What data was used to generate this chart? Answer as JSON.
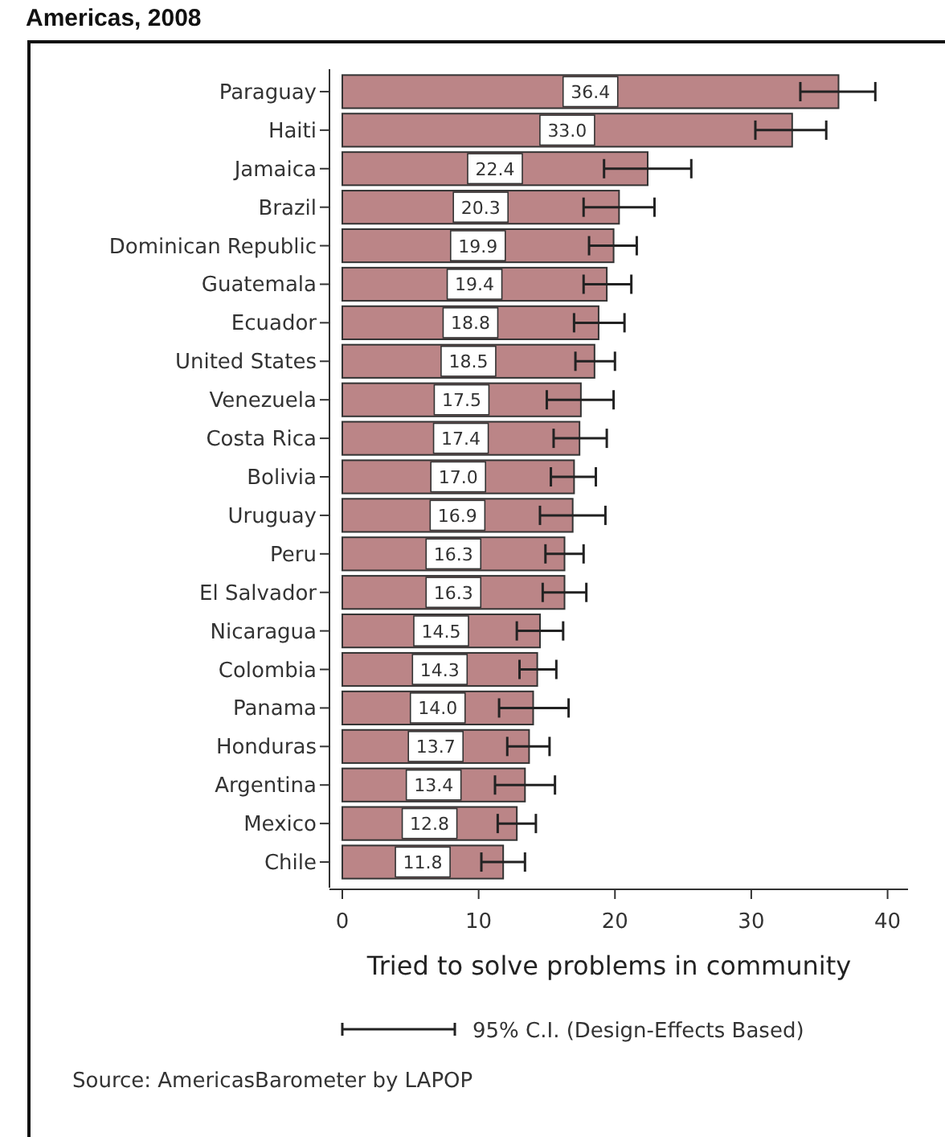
{
  "chart_data": {
    "type": "bar",
    "orientation": "horizontal",
    "title": "Americas, 2008",
    "xlabel": "Tried to solve problems in community",
    "categories": [
      "Paraguay",
      "Haiti",
      "Jamaica",
      "Brazil",
      "Dominican Republic",
      "Guatemala",
      "Ecuador",
      "United States",
      "Venezuela",
      "Costa Rica",
      "Bolivia",
      "Uruguay",
      "Peru",
      "El Salvador",
      "Nicaragua",
      "Colombia",
      "Panama",
      "Honduras",
      "Argentina",
      "Mexico",
      "Chile"
    ],
    "values": [
      36.4,
      33.0,
      22.4,
      20.3,
      19.9,
      19.4,
      18.8,
      18.5,
      17.5,
      17.4,
      17.0,
      16.9,
      16.3,
      16.3,
      14.5,
      14.3,
      14.0,
      13.7,
      13.4,
      12.8,
      11.8
    ],
    "value_labels": [
      "36.4",
      "33.0",
      "22.4",
      "20.3",
      "19.9",
      "19.4",
      "18.8",
      "18.5",
      "17.5",
      "17.4",
      "17.0",
      "16.9",
      "16.3",
      "16.3",
      "14.5",
      "14.3",
      "14.0",
      "13.7",
      "13.4",
      "12.8",
      "11.8"
    ],
    "errors": [
      [
        33.6,
        39.1
      ],
      [
        30.3,
        35.5
      ],
      [
        19.2,
        25.6
      ],
      [
        17.7,
        22.9
      ],
      [
        18.1,
        21.6
      ],
      [
        17.7,
        21.2
      ],
      [
        17.0,
        20.7
      ],
      [
        17.1,
        20.0
      ],
      [
        15.0,
        19.9
      ],
      [
        15.5,
        19.4
      ],
      [
        15.3,
        18.6
      ],
      [
        14.5,
        19.3
      ],
      [
        14.9,
        17.7
      ],
      [
        14.7,
        17.9
      ],
      [
        12.8,
        16.2
      ],
      [
        13.0,
        15.7
      ],
      [
        11.5,
        16.6
      ],
      [
        12.1,
        15.2
      ],
      [
        11.2,
        15.6
      ],
      [
        11.4,
        14.2
      ],
      [
        10.2,
        13.4
      ]
    ],
    "color": "#bb8587",
    "xlim": [
      0,
      41.5
    ],
    "xticks": [
      0,
      10,
      20,
      30,
      40
    ],
    "annotations": [
      "95% C.I. (Design-Effects Based)",
      "Source: AmericasBarometer by  LAPOP"
    ]
  }
}
